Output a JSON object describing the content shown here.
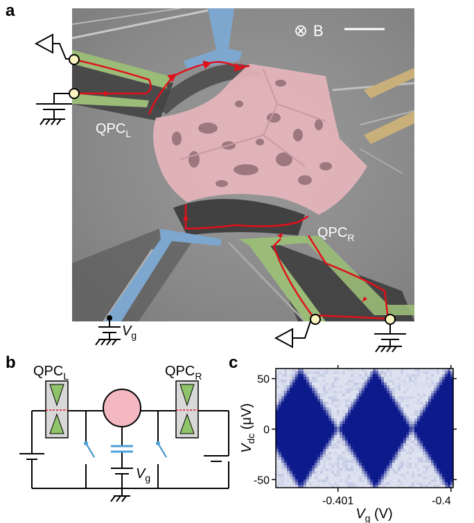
{
  "panels": {
    "a": "a",
    "b": "b",
    "c": "c"
  },
  "panel_a": {
    "field_symbol": "⊗",
    "field_label": "B",
    "qpc_left": "QPC",
    "qpc_left_sub": "L",
    "qpc_right": "QPC",
    "qpc_right_sub": "R",
    "gate_label": "V",
    "gate_sub": "g"
  },
  "panel_b": {
    "qpc_left": "QPC",
    "qpc_left_sub": "L",
    "qpc_right": "QPC",
    "qpc_right_sub": "R",
    "gate_label": "V",
    "gate_sub": "g"
  },
  "chart_data": {
    "type": "heatmap",
    "x_tick_labels": [
      "-0.401",
      "-0.4"
    ],
    "x_ticks": [
      -0.401,
      -0.4
    ],
    "y_tick_labels": [
      "50",
      "0",
      "-50"
    ],
    "y_ticks": [
      50,
      0,
      -50
    ],
    "xlim": [
      -0.40155,
      -0.39998
    ],
    "ylim": [
      -58,
      60
    ],
    "xlabel": "V",
    "xlabel_sub": "g",
    "xlabel_unit": "(V)",
    "ylabel": "V",
    "ylabel_sub": "dc",
    "ylabel_unit": "(μV)",
    "diamond_centers_x": [
      -0.40133,
      -0.40067,
      -0.40002
    ],
    "diamond_half_width": 0.00033,
    "diamond_half_height": 60,
    "colors": {
      "low": "#0d1a8c",
      "high": "#dde2f0"
    }
  }
}
